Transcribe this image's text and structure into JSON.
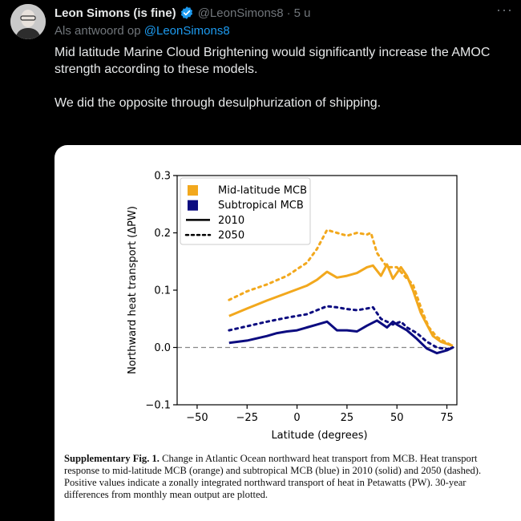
{
  "tweet": {
    "author_name": "Leon Simons (is fine)",
    "handle": "@LeonSimons8",
    "separator": "·",
    "time": "5 u",
    "reply_prefix": "Als antwoord op",
    "reply_handle": "@LeonSimons8",
    "text_p1": "Mid latitude Marine Cloud Brightening would significantly increase the AMOC strength according to these models.",
    "text_p2": "We did the opposite through desulphurization of shipping.",
    "more_label": "···",
    "verified_icon": "verified-badge-icon",
    "colors": {
      "accent": "#1d9bf0",
      "muted": "#71767b",
      "text": "#e7e9ea",
      "background": "#000000"
    }
  },
  "figure": {
    "caption_bold": "Supplementary Fig. 1.",
    "caption_text": " Change in Atlantic Ocean northward heat transport from MCB. Heat transport response to mid-latitude MCB (orange) and subtropical MCB (blue) in 2010 (solid) and 2050 (dashed). Positive values indicate a zonally integrated northward transport of heat in Petawatts (PW). 30-year differences from monthly mean output are plotted."
  },
  "chart_data": {
    "type": "line",
    "xlabel": "Latitude (degrees)",
    "ylabel": "Northward heat transport (ΔPW)",
    "xlim": [
      -60,
      80
    ],
    "ylim": [
      -0.1,
      0.3
    ],
    "xticks": [
      -50,
      -25,
      0,
      25,
      50,
      75
    ],
    "yticks": [
      -0.1,
      0.0,
      0.1,
      0.2,
      0.3
    ],
    "xtick_labels": [
      "−50",
      "−25",
      "0",
      "25",
      "50",
      "75"
    ],
    "ytick_labels": [
      "−0.1",
      "0.0",
      "0.1",
      "0.2",
      "0.3"
    ],
    "zero_line": "dashed",
    "grid": false,
    "legend": {
      "placement": "top-left",
      "entries": [
        {
          "label": "Mid-latitude MCB",
          "color": "#f2a81d",
          "kind": "patch"
        },
        {
          "label": "Subtropical MCB",
          "color": "#0c0c80",
          "kind": "patch"
        },
        {
          "label": "2010",
          "color": "#000000",
          "kind": "solid"
        },
        {
          "label": "2050",
          "color": "#000000",
          "kind": "dotted"
        }
      ]
    },
    "series": [
      {
        "color": "#f2a81d",
        "style": "solid",
        "x": [
          -34,
          -25,
          -15,
          -5,
          5,
          10,
          15,
          20,
          25,
          30,
          35,
          38,
          42,
          45,
          48,
          52,
          55,
          58,
          60,
          62,
          65,
          68,
          72,
          78
        ],
        "y": [
          0.055,
          0.068,
          0.082,
          0.095,
          0.108,
          0.118,
          0.132,
          0.122,
          0.125,
          0.13,
          0.14,
          0.143,
          0.125,
          0.145,
          0.12,
          0.14,
          0.125,
          0.1,
          0.08,
          0.06,
          0.04,
          0.02,
          0.01,
          0.003
        ]
      },
      {
        "color": "#f2a81d",
        "style": "dotted",
        "x": [
          -34,
          -25,
          -15,
          -5,
          5,
          10,
          15,
          20,
          25,
          30,
          35,
          37,
          40,
          45,
          50,
          55,
          58,
          60,
          63,
          66,
          70,
          75,
          78
        ],
        "y": [
          0.083,
          0.098,
          0.11,
          0.125,
          0.148,
          0.172,
          0.205,
          0.2,
          0.195,
          0.2,
          0.197,
          0.2,
          0.165,
          0.14,
          0.14,
          0.12,
          0.11,
          0.09,
          0.06,
          0.035,
          0.018,
          0.008,
          0.003
        ]
      },
      {
        "color": "#0c0c80",
        "style": "solid",
        "x": [
          -34,
          -25,
          -15,
          -10,
          -5,
          0,
          5,
          10,
          15,
          20,
          25,
          30,
          35,
          40,
          45,
          48,
          50,
          55,
          60,
          65,
          70,
          75,
          78
        ],
        "y": [
          0.008,
          0.012,
          0.02,
          0.025,
          0.028,
          0.03,
          0.035,
          0.04,
          0.045,
          0.03,
          0.03,
          0.028,
          0.038,
          0.047,
          0.035,
          0.045,
          0.04,
          0.03,
          0.015,
          -0.002,
          -0.01,
          -0.005,
          0.0
        ]
      },
      {
        "color": "#0c0c80",
        "style": "dotted",
        "x": [
          -34,
          -25,
          -15,
          -5,
          5,
          10,
          15,
          20,
          25,
          30,
          35,
          38,
          42,
          45,
          48,
          52,
          55,
          60,
          65,
          70,
          75,
          78
        ],
        "y": [
          0.03,
          0.037,
          0.045,
          0.052,
          0.058,
          0.065,
          0.072,
          0.07,
          0.067,
          0.065,
          0.068,
          0.07,
          0.05,
          0.045,
          0.04,
          0.045,
          0.035,
          0.025,
          0.01,
          0.0,
          -0.003,
          0.0
        ]
      }
    ]
  }
}
